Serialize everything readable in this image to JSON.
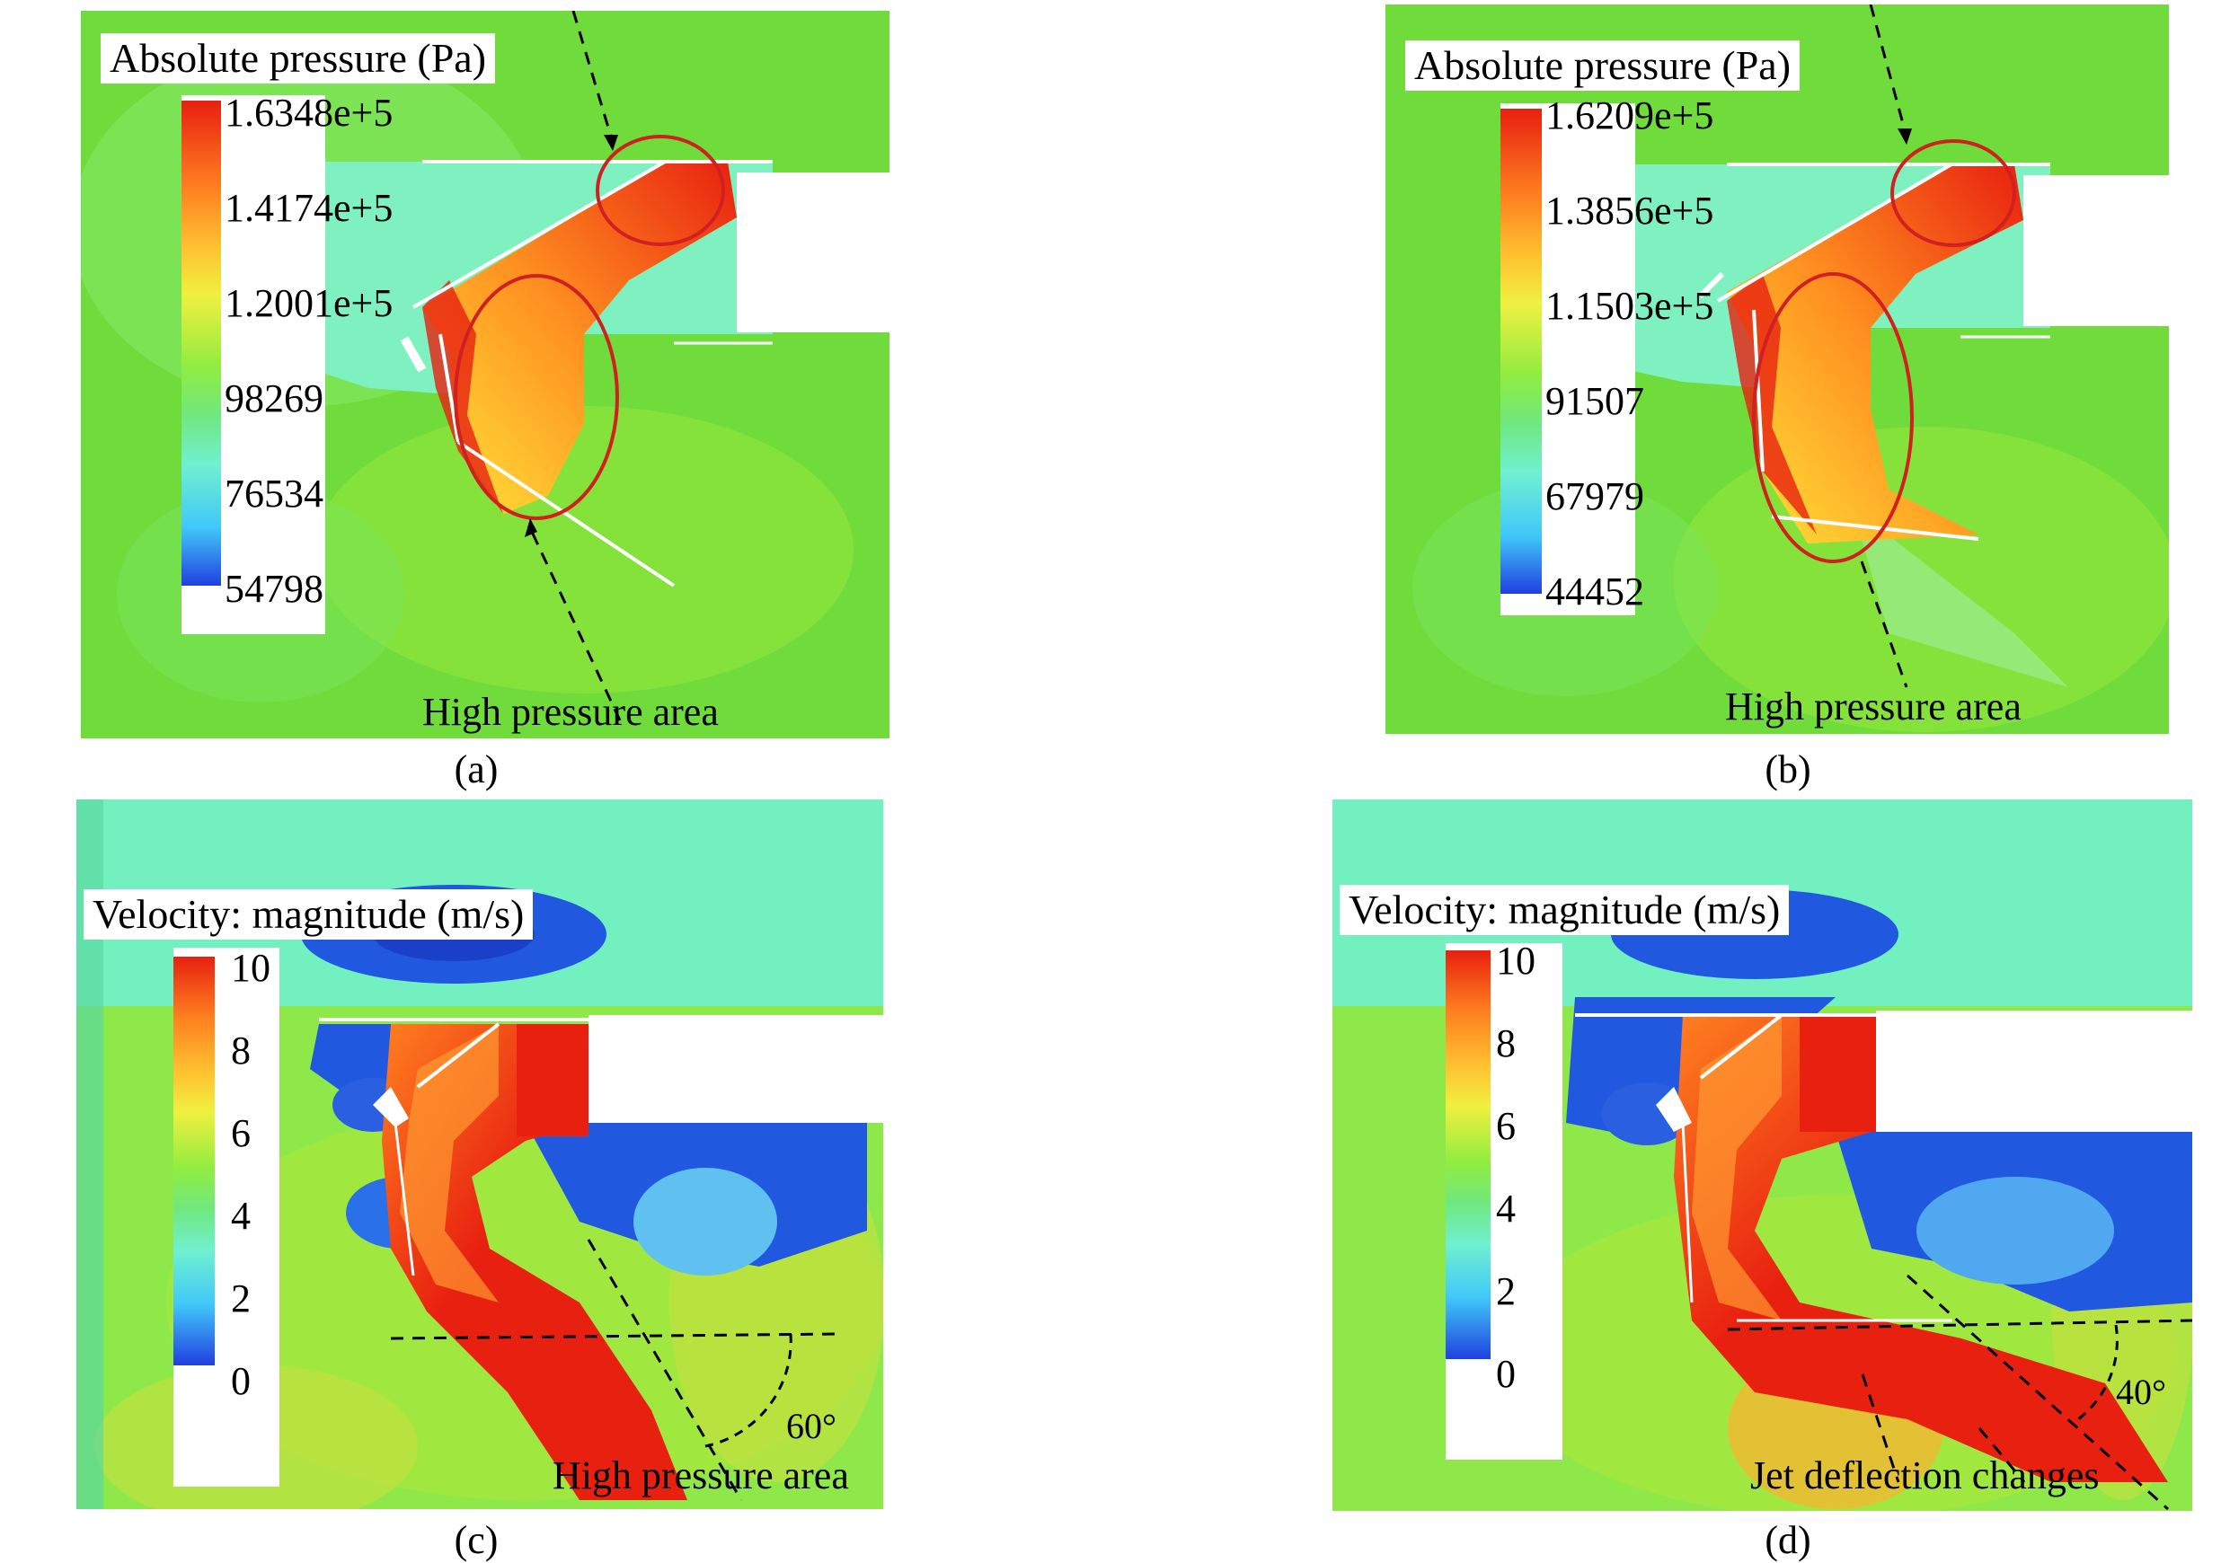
{
  "panels": {
    "a": {
      "legend_title": "Absolute pressure (Pa)",
      "ticks": [
        "1.6348e+5",
        "1.4174e+5",
        "1.2001e+5",
        "98269",
        "76534",
        "54798"
      ],
      "annotation": "High pressure area",
      "caption": "(a)"
    },
    "b": {
      "legend_title": "Absolute pressure (Pa)",
      "ticks": [
        "1.6209e+5",
        "1.3856e+5",
        "1.1503e+5",
        "91507",
        "67979",
        "44452"
      ],
      "annotation": "High pressure area",
      "caption": "(b)"
    },
    "c": {
      "legend_title": "Velocity: magnitude (m/s)",
      "ticks": [
        "10",
        "8",
        "6",
        "4",
        "2",
        "0"
      ],
      "annotation": "High pressure area",
      "angle_label": "60°",
      "caption": "(c)"
    },
    "d": {
      "legend_title": "Velocity: magnitude (m/s)",
      "ticks": [
        "10",
        "8",
        "6",
        "4",
        "2",
        "0"
      ],
      "annotation": "Jet deflection changes",
      "angle_label": "40°",
      "caption": "(d)"
    }
  },
  "colors": {
    "field_green": "#6fdc3c",
    "field_cyan": "#7ff0c0",
    "high_red": "#e82010",
    "low_blue": "#2050e0",
    "ellipse_red": "#d02020"
  }
}
